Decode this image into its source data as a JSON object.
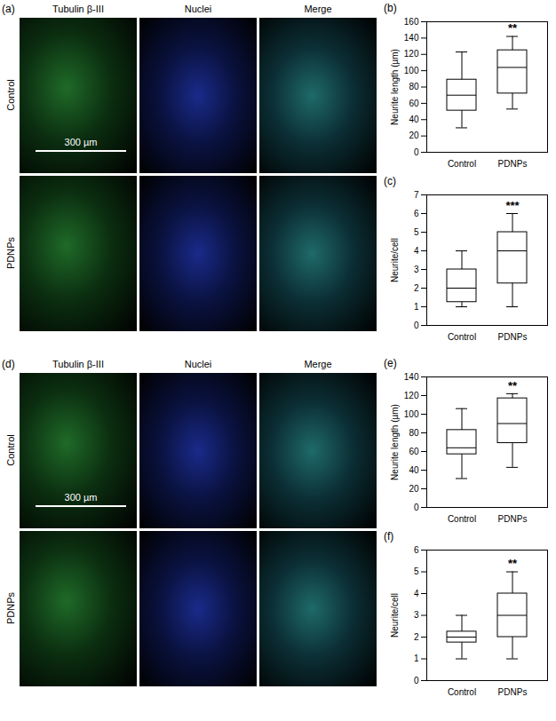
{
  "chart_data": [
    {
      "type": "box",
      "panel": "(b)",
      "ylabel": "Neurite length (µm)",
      "categories": [
        "Control",
        "PDNPs"
      ],
      "min": [
        30,
        53
      ],
      "q1": [
        51,
        72
      ],
      "median": [
        70,
        104
      ],
      "q3": [
        89,
        125
      ],
      "max": [
        123,
        142
      ],
      "ylim": [
        0,
        160
      ],
      "yticks": [
        0,
        20,
        40,
        60,
        80,
        100,
        120,
        140,
        160
      ],
      "annotations": [
        {
          "category": "PDNPs",
          "text": "**"
        }
      ]
    },
    {
      "type": "box",
      "panel": "(c)",
      "ylabel": "Neurite/cell",
      "categories": [
        "Control",
        "PDNPs"
      ],
      "min": [
        1,
        1
      ],
      "q1": [
        1.25,
        2.25
      ],
      "median": [
        2,
        4
      ],
      "q3": [
        3,
        5
      ],
      "max": [
        4,
        6
      ],
      "ylim": [
        0,
        7
      ],
      "yticks": [
        0,
        1,
        2,
        3,
        4,
        5,
        6,
        7
      ],
      "annotations": [
        {
          "category": "PDNPs",
          "text": "***"
        }
      ]
    },
    {
      "type": "box",
      "panel": "(e)",
      "ylabel": "Neurite length (µm)",
      "categories": [
        "Control",
        "PDNPs"
      ],
      "min": [
        31,
        43
      ],
      "q1": [
        57,
        69
      ],
      "median": [
        64,
        90
      ],
      "q3": [
        83,
        117
      ],
      "max": [
        106,
        122
      ],
      "ylim": [
        0,
        140
      ],
      "yticks": [
        0,
        20,
        40,
        60,
        80,
        100,
        120,
        140
      ],
      "annotations": [
        {
          "category": "PDNPs",
          "text": "**"
        }
      ]
    },
    {
      "type": "box",
      "panel": "(f)",
      "ylabel": "Neurite/cell",
      "categories": [
        "Control",
        "PDNPs"
      ],
      "min": [
        1,
        1
      ],
      "q1": [
        1.75,
        2
      ],
      "median": [
        2,
        3
      ],
      "q3": [
        2.25,
        4
      ],
      "max": [
        3,
        5
      ],
      "ylim": [
        0,
        6
      ],
      "yticks": [
        0,
        1,
        2,
        3,
        4,
        5,
        6
      ],
      "annotations": [
        {
          "category": "PDNPs",
          "text": "**"
        }
      ]
    }
  ],
  "image_panels": [
    {
      "panel": "(a)",
      "columns": [
        "Tubulin β-III",
        "Nuclei",
        "Merge"
      ],
      "rows": [
        "Control",
        "PDNPs"
      ],
      "scale_bar": "300 µm"
    },
    {
      "panel": "(d)",
      "columns": [
        "Tubulin β-III",
        "Nuclei",
        "Merge"
      ],
      "rows": [
        "Control",
        "PDNPs"
      ],
      "scale_bar": "300 µm"
    }
  ]
}
